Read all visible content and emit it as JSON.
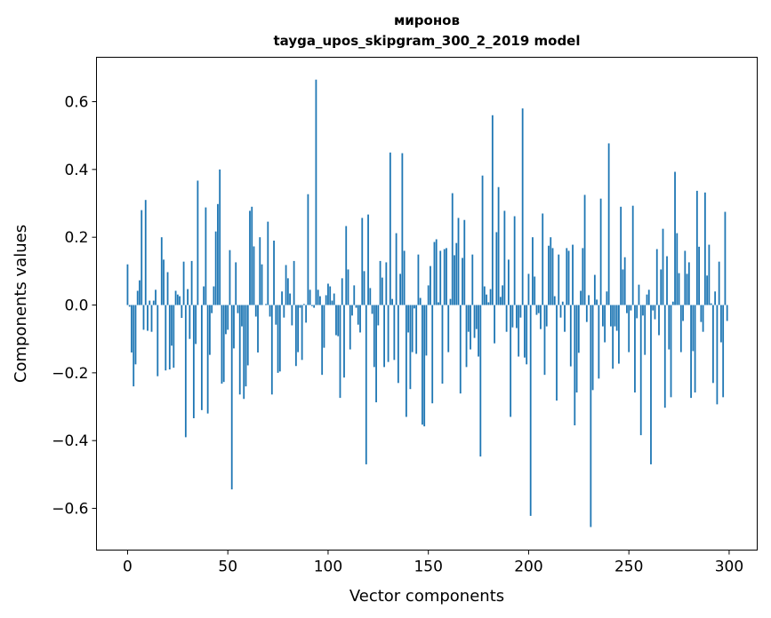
{
  "chart_data": {
    "type": "bar",
    "title": "миронов",
    "subtitle": "tayga_upos_skipgram_300_2_2019 model",
    "xlabel": "Vector components",
    "ylabel": "Components values",
    "xlim": [
      -15.5,
      314
    ],
    "ylim": [
      -0.723,
      0.731
    ],
    "xticks": [
      0,
      50,
      100,
      150,
      200,
      250,
      300
    ],
    "xtick_labels": [
      "0",
      "50",
      "100",
      "150",
      "200",
      "250",
      "300"
    ],
    "yticks": [
      -0.6,
      -0.4,
      -0.2,
      0.0,
      0.2,
      0.4,
      0.6
    ],
    "ytick_labels": [
      "−0.6",
      "−0.4",
      "−0.2",
      "0.0",
      "0.2",
      "0.4",
      "0.6"
    ],
    "grid": false,
    "bar_color": "#1f77b4",
    "values": [
      0.12,
      -0.005,
      -0.14,
      -0.24,
      -0.175,
      0.042,
      0.073,
      0.28,
      -0.073,
      0.31,
      -0.076,
      0.013,
      -0.079,
      0.013,
      0.045,
      -0.21,
      0.0,
      0.2,
      0.134,
      -0.193,
      0.097,
      -0.19,
      -0.12,
      -0.185,
      0.042,
      0.031,
      0.026,
      -0.038,
      0.128,
      -0.39,
      0.047,
      -0.1,
      0.13,
      -0.334,
      -0.115,
      0.367,
      0.0,
      -0.31,
      0.055,
      0.288,
      -0.32,
      -0.147,
      -0.024,
      0.055,
      0.217,
      0.298,
      0.4,
      -0.232,
      -0.227,
      -0.086,
      -0.073,
      0.162,
      -0.544,
      -0.128,
      0.126,
      -0.024,
      -0.264,
      -0.063,
      -0.277,
      -0.24,
      -0.178,
      0.278,
      0.29,
      0.173,
      -0.034,
      -0.14,
      0.2,
      0.12,
      0.0,
      0.003,
      0.246,
      -0.034,
      -0.264,
      0.19,
      -0.058,
      -0.2,
      -0.196,
      0.04,
      -0.037,
      0.118,
      0.079,
      0.034,
      -0.06,
      0.13,
      -0.18,
      -0.139,
      -0.008,
      -0.162,
      0.003,
      -0.052,
      0.327,
      0.045,
      -0.003,
      -0.008,
      0.665,
      0.045,
      0.026,
      -0.206,
      -0.126,
      0.029,
      0.063,
      0.055,
      0.013,
      0.034,
      -0.089,
      -0.092,
      -0.274,
      0.079,
      -0.214,
      0.233,
      0.105,
      -0.131,
      -0.031,
      0.058,
      -0.008,
      -0.058,
      -0.081,
      0.257,
      0.1,
      -0.47,
      0.267,
      0.05,
      -0.026,
      -0.183,
      -0.287,
      -0.06,
      0.13,
      0.081,
      -0.183,
      0.126,
      -0.168,
      0.45,
      0.018,
      -0.162,
      0.212,
      -0.23,
      0.092,
      0.448,
      0.16,
      -0.33,
      -0.081,
      -0.248,
      -0.139,
      -0.01,
      -0.144,
      0.149,
      0.021,
      -0.353,
      -0.358,
      -0.149,
      0.058,
      0.115,
      -0.29,
      0.186,
      0.194,
      0.008,
      0.16,
      -0.232,
      0.165,
      0.168,
      -0.139,
      0.018,
      0.33,
      0.147,
      0.183,
      0.257,
      -0.261,
      0.139,
      0.251,
      -0.183,
      -0.079,
      -0.131,
      0.149,
      -0.097,
      -0.071,
      -0.152,
      -0.447,
      0.382,
      0.055,
      0.031,
      0.008,
      0.047,
      0.56,
      -0.113,
      0.215,
      0.348,
      0.024,
      0.058,
      0.278,
      -0.079,
      0.134,
      -0.33,
      -0.066,
      0.262,
      -0.068,
      -0.152,
      -0.037,
      0.58,
      -0.155,
      -0.175,
      0.092,
      -0.622,
      0.2,
      0.084,
      -0.029,
      -0.024,
      -0.071,
      0.27,
      -0.206,
      -0.063,
      0.175,
      0.2,
      0.168,
      0.026,
      -0.282,
      0.149,
      -0.037,
      0.01,
      -0.079,
      0.168,
      0.16,
      -0.181,
      0.178,
      -0.355,
      -0.258,
      -0.141,
      0.042,
      0.168,
      0.325,
      -0.05,
      0.029,
      -0.655,
      -0.251,
      0.089,
      0.016,
      -0.217,
      0.314,
      -0.063,
      -0.11,
      0.04,
      0.477,
      -0.063,
      -0.188,
      -0.063,
      -0.076,
      -0.173,
      0.29,
      0.105,
      0.141,
      -0.024,
      -0.139,
      -0.016,
      0.293,
      -0.258,
      -0.039,
      0.06,
      -0.384,
      -0.031,
      -0.147,
      0.031,
      0.045,
      -0.47,
      -0.016,
      -0.042,
      0.165,
      -0.089,
      0.105,
      0.225,
      -0.303,
      0.144,
      -0.131,
      -0.272,
      0.01,
      0.393,
      0.212,
      0.094,
      -0.139,
      -0.047,
      0.16,
      0.092,
      0.126,
      -0.274,
      -0.136,
      -0.258,
      0.337,
      0.172,
      -0.05,
      -0.079,
      0.332,
      0.087,
      0.178,
      0.005,
      -0.23,
      0.04,
      -0.293,
      0.128,
      -0.11,
      -0.272,
      0.275,
      -0.047
    ]
  }
}
